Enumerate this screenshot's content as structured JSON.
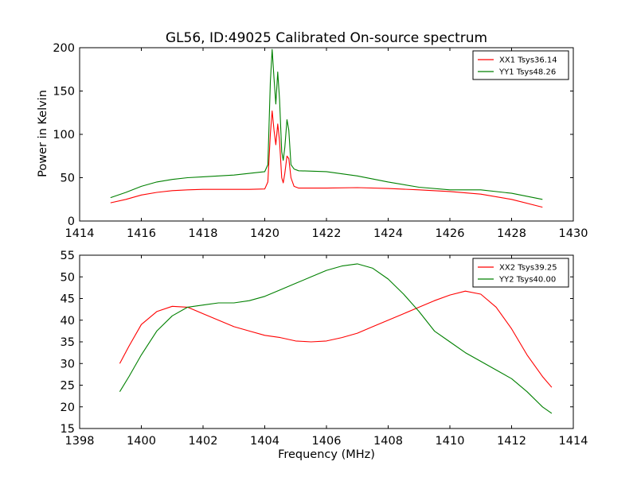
{
  "chart_data": [
    {
      "type": "line",
      "title": "GL56, ID:49025 Calibrated On-source spectrum",
      "xlabel": "",
      "ylabel": "Power in Kelvin",
      "xlim": [
        1414,
        1430
      ],
      "ylim": [
        0,
        200
      ],
      "xticks": [
        1414,
        1416,
        1418,
        1420,
        1422,
        1424,
        1426,
        1428,
        1430
      ],
      "yticks": [
        0,
        50,
        100,
        150,
        200
      ],
      "legend_position": "top-right",
      "series": [
        {
          "name": "XX1 Tsys36.14",
          "color": "#ff0000",
          "points": [
            [
              1415.0,
              21
            ],
            [
              1415.5,
              25
            ],
            [
              1416.0,
              30
            ],
            [
              1416.5,
              33
            ],
            [
              1417.0,
              35
            ],
            [
              1417.5,
              36
            ],
            [
              1418.0,
              36.5
            ],
            [
              1419.0,
              36.5
            ],
            [
              1419.5,
              36.5
            ],
            [
              1420.0,
              37
            ],
            [
              1420.1,
              45
            ],
            [
              1420.18,
              100
            ],
            [
              1420.24,
              127
            ],
            [
              1420.3,
              105
            ],
            [
              1420.36,
              88
            ],
            [
              1420.42,
              112
            ],
            [
              1420.48,
              92
            ],
            [
              1420.55,
              50
            ],
            [
              1420.6,
              44
            ],
            [
              1420.65,
              55
            ],
            [
              1420.72,
              75
            ],
            [
              1420.78,
              72
            ],
            [
              1420.85,
              50
            ],
            [
              1420.95,
              40
            ],
            [
              1421.1,
              38
            ],
            [
              1422.0,
              38
            ],
            [
              1423.0,
              38.5
            ],
            [
              1424.0,
              37.5
            ],
            [
              1425.0,
              36
            ],
            [
              1426.0,
              34
            ],
            [
              1427.0,
              31
            ],
            [
              1428.0,
              25
            ],
            [
              1429.0,
              16
            ]
          ]
        },
        {
          "name": "YY1 Tsys48.26",
          "color": "#008000",
          "points": [
            [
              1415.0,
              27
            ],
            [
              1415.5,
              33
            ],
            [
              1416.0,
              40
            ],
            [
              1416.5,
              45
            ],
            [
              1417.0,
              48
            ],
            [
              1417.5,
              50
            ],
            [
              1418.0,
              51
            ],
            [
              1418.5,
              52
            ],
            [
              1419.0,
              53
            ],
            [
              1419.5,
              55
            ],
            [
              1420.0,
              57
            ],
            [
              1420.1,
              65
            ],
            [
              1420.18,
              160
            ],
            [
              1420.24,
              198
            ],
            [
              1420.3,
              165
            ],
            [
              1420.36,
              135
            ],
            [
              1420.42,
              172
            ],
            [
              1420.48,
              140
            ],
            [
              1420.55,
              80
            ],
            [
              1420.6,
              70
            ],
            [
              1420.65,
              85
            ],
            [
              1420.72,
              117
            ],
            [
              1420.78,
              105
            ],
            [
              1420.85,
              65
            ],
            [
              1420.95,
              60
            ],
            [
              1421.1,
              58
            ],
            [
              1422.0,
              57
            ],
            [
              1423.0,
              52
            ],
            [
              1424.0,
              45
            ],
            [
              1425.0,
              39
            ],
            [
              1426.0,
              36
            ],
            [
              1427.0,
              36
            ],
            [
              1428.0,
              32
            ],
            [
              1429.0,
              25
            ]
          ]
        }
      ]
    },
    {
      "type": "line",
      "title": "",
      "xlabel": "Frequency (MHz)",
      "ylabel": "",
      "xlim": [
        1398,
        1414
      ],
      "ylim": [
        15,
        55
      ],
      "xticks": [
        1398,
        1400,
        1402,
        1404,
        1406,
        1408,
        1410,
        1412,
        1414
      ],
      "yticks": [
        15,
        20,
        25,
        30,
        35,
        40,
        45,
        50,
        55
      ],
      "legend_position": "top-right",
      "series": [
        {
          "name": "XX2 Tsys39.25",
          "color": "#ff0000",
          "points": [
            [
              1399.3,
              30
            ],
            [
              1399.6,
              34
            ],
            [
              1400.0,
              39
            ],
            [
              1400.5,
              42
            ],
            [
              1401.0,
              43.2
            ],
            [
              1401.5,
              43
            ],
            [
              1402.0,
              41.5
            ],
            [
              1402.5,
              40
            ],
            [
              1403.0,
              38.5
            ],
            [
              1403.5,
              37.5
            ],
            [
              1404.0,
              36.5
            ],
            [
              1404.5,
              36
            ],
            [
              1405.0,
              35.2
            ],
            [
              1405.5,
              35
            ],
            [
              1406.0,
              35.2
            ],
            [
              1406.5,
              36
            ],
            [
              1407.0,
              37
            ],
            [
              1407.5,
              38.5
            ],
            [
              1408.0,
              40
            ],
            [
              1408.5,
              41.5
            ],
            [
              1409.0,
              43
            ],
            [
              1409.5,
              44.5
            ],
            [
              1410.0,
              45.8
            ],
            [
              1410.5,
              46.7
            ],
            [
              1411.0,
              46
            ],
            [
              1411.5,
              43
            ],
            [
              1412.0,
              38
            ],
            [
              1412.5,
              32
            ],
            [
              1413.0,
              27
            ],
            [
              1413.3,
              24.5
            ]
          ]
        },
        {
          "name": "YY2 Tsys40.00",
          "color": "#008000",
          "points": [
            [
              1399.3,
              23.5
            ],
            [
              1399.6,
              27
            ],
            [
              1400.0,
              32
            ],
            [
              1400.5,
              37.5
            ],
            [
              1401.0,
              41
            ],
            [
              1401.5,
              43
            ],
            [
              1402.0,
              43.5
            ],
            [
              1402.5,
              44
            ],
            [
              1403.0,
              44
            ],
            [
              1403.5,
              44.5
            ],
            [
              1404.0,
              45.5
            ],
            [
              1404.5,
              47
            ],
            [
              1405.0,
              48.5
            ],
            [
              1405.5,
              50
            ],
            [
              1406.0,
              51.5
            ],
            [
              1406.5,
              52.5
            ],
            [
              1407.0,
              53
            ],
            [
              1407.5,
              52
            ],
            [
              1408.0,
              49.5
            ],
            [
              1408.5,
              46
            ],
            [
              1409.0,
              42
            ],
            [
              1409.5,
              37.5
            ],
            [
              1410.0,
              35
            ],
            [
              1410.5,
              32.5
            ],
            [
              1411.0,
              30.5
            ],
            [
              1411.5,
              28.5
            ],
            [
              1412.0,
              26.5
            ],
            [
              1412.5,
              23.5
            ],
            [
              1413.0,
              20
            ],
            [
              1413.3,
              18.5
            ]
          ]
        }
      ]
    }
  ]
}
